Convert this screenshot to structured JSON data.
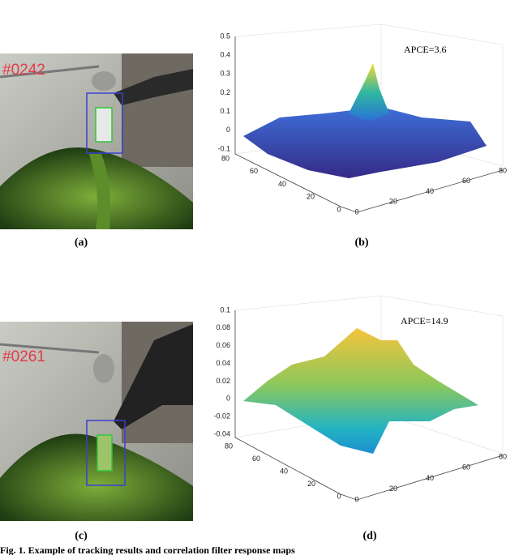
{
  "figure": {
    "panels": [
      {
        "photo": {
          "frame": "#0242",
          "label": "(a)"
        },
        "plot": {
          "label": "(b)",
          "annotation": "APCE=3.6",
          "zticks": [
            0.5,
            0.4,
            0.3,
            0.2,
            0.1,
            0,
            -0.1
          ],
          "xticks": [
            80,
            60,
            40,
            20,
            0
          ],
          "yticks": [
            0,
            20,
            40,
            60,
            80
          ]
        }
      },
      {
        "photo": {
          "frame": "#0261",
          "label": "(c)"
        },
        "plot": {
          "label": "(d)",
          "annotation": "APCE=14.9",
          "zticks": [
            0.1,
            0.08,
            0.06,
            0.04,
            0.02,
            0,
            -0.02,
            -0.04
          ],
          "xticks": [
            80,
            60,
            40,
            20,
            0
          ],
          "yticks": [
            0,
            20,
            40,
            60,
            80
          ]
        }
      }
    ],
    "caption": "Fig. 1. Example of tracking results and correlation filter response maps"
  }
}
